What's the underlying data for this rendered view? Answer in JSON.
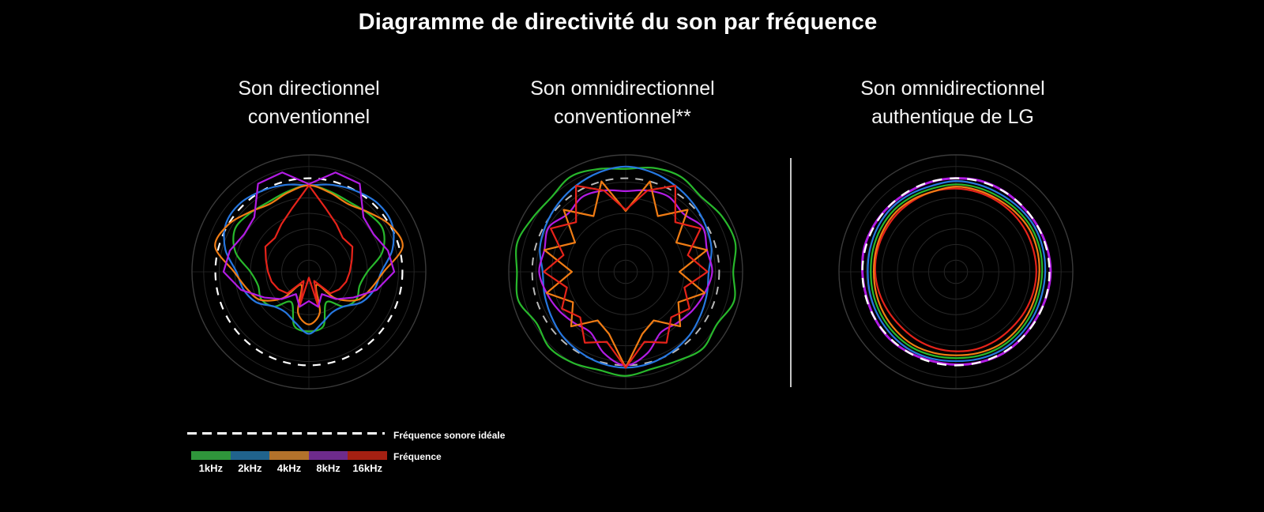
{
  "page": {
    "title": "Diagramme de directivité du son par fréquence",
    "background": "#000000"
  },
  "legend": {
    "ideal_label": "Fréquence sonore idéale",
    "freq_label": "Fréquence",
    "ideal_line_color": "#ffffff",
    "items": [
      {
        "label": "1kHz",
        "color": "#2f963b"
      },
      {
        "label": "2kHz",
        "color": "#20638d"
      },
      {
        "label": "4kHz",
        "color": "#b3722b"
      },
      {
        "label": "8kHz",
        "color": "#6e2b8c"
      },
      {
        "label": "16kHz",
        "color": "#a52012"
      }
    ]
  },
  "chart_data": [
    {
      "type": "polar-line",
      "title_lines": [
        "Son directionnel",
        "conventionnel"
      ],
      "angle_unit": "deg",
      "angle_zero": "top-clockwise",
      "angle_step_deg": 15,
      "radial_range": [
        0,
        1
      ],
      "grid": "concentric-rings",
      "ideal": {
        "label": "Fréquence sonore idéale",
        "radius": 0.8,
        "color": "#ffffff",
        "on_top": false,
        "dash": "10 9",
        "width": 2.2
      },
      "series": [
        {
          "name": "1kHz",
          "color": "#28b82c",
          "style": "smooth",
          "values": [
            0.74,
            0.71,
            0.69,
            0.71,
            0.73,
            0.65,
            0.5,
            0.45,
            0.47,
            0.42,
            0.3,
            0.48,
            0.51,
            0.48,
            0.3,
            0.42,
            0.47,
            0.45,
            0.5,
            0.65,
            0.73,
            0.71,
            0.69,
            0.71
          ]
        },
        {
          "name": "2kHz",
          "color": "#2677e0",
          "style": "smooth",
          "values": [
            0.74,
            0.77,
            0.8,
            0.83,
            0.82,
            0.74,
            0.62,
            0.58,
            0.52,
            0.42,
            0.4,
            0.45,
            0.53,
            0.45,
            0.4,
            0.42,
            0.52,
            0.58,
            0.62,
            0.74,
            0.82,
            0.83,
            0.8,
            0.77
          ]
        },
        {
          "name": "4kHz",
          "color": "#f07c14",
          "style": "smooth",
          "values": [
            0.74,
            0.7,
            0.67,
            0.72,
            0.8,
            0.83,
            0.64,
            0.55,
            0.48,
            0.32,
            0.13,
            0.36,
            0.45,
            0.36,
            0.13,
            0.32,
            0.48,
            0.55,
            0.64,
            0.83,
            0.8,
            0.72,
            0.67,
            0.7
          ]
        },
        {
          "name": "16kHz",
          "color": "#e6231a",
          "style": "jagged",
          "values": [
            0.74,
            0.56,
            0.47,
            0.41,
            0.43,
            0.38,
            0.35,
            0.33,
            0.3,
            0.26,
            0.09,
            0.29,
            0.05,
            0.29,
            0.09,
            0.26,
            0.3,
            0.33,
            0.35,
            0.38,
            0.43,
            0.41,
            0.47,
            0.56
          ]
        },
        {
          "name": "8kHz",
          "color": "#b21ce4",
          "style": "jagged",
          "values": [
            0.75,
            0.88,
            0.87,
            0.66,
            0.64,
            0.7,
            0.73,
            0.6,
            0.44,
            0.33,
            0.22,
            0.31,
            0.25,
            0.31,
            0.22,
            0.33,
            0.44,
            0.6,
            0.73,
            0.7,
            0.64,
            0.66,
            0.87,
            0.88
          ]
        }
      ]
    },
    {
      "type": "polar-line",
      "title_lines": [
        "Son omnidirectionnel",
        "conventionnel**"
      ],
      "angle_unit": "deg",
      "angle_zero": "top-clockwise",
      "angle_step_deg": 15,
      "radial_range": [
        0,
        1
      ],
      "grid": "concentric-rings",
      "ideal": {
        "label": "Fréquence sonore idéale",
        "radius": 0.8,
        "color": "#b9b9b9",
        "on_top": false,
        "dash": "10 9",
        "width": 2.0
      },
      "series": [
        {
          "name": "1kHz",
          "color": "#28b82c",
          "style": "smooth",
          "values": [
            0.88,
            0.92,
            0.94,
            0.91,
            0.95,
            0.97,
            0.92,
            0.96,
            0.9,
            0.93,
            0.88,
            0.86,
            0.89,
            0.87,
            0.9,
            0.92,
            0.88,
            0.95,
            0.93,
            0.96,
            0.92,
            0.9,
            0.94,
            0.91
          ]
        },
        {
          "name": "2kHz",
          "color": "#2677e0",
          "style": "smooth",
          "values": [
            0.9,
            0.88,
            0.85,
            0.82,
            0.79,
            0.76,
            0.71,
            0.72,
            0.74,
            0.77,
            0.79,
            0.81,
            0.82,
            0.81,
            0.79,
            0.77,
            0.74,
            0.72,
            0.71,
            0.76,
            0.79,
            0.82,
            0.85,
            0.88
          ]
        },
        {
          "name": "8kHz",
          "color": "#b21ce4",
          "style": "smooth",
          "values": [
            0.69,
            0.72,
            0.74,
            0.7,
            0.76,
            0.72,
            0.74,
            0.7,
            0.66,
            0.62,
            0.6,
            0.72,
            0.8,
            0.72,
            0.6,
            0.62,
            0.66,
            0.7,
            0.74,
            0.72,
            0.76,
            0.7,
            0.74,
            0.72
          ]
        },
        {
          "name": "4kHz",
          "color": "#f07c14",
          "style": "jagged",
          "values": [
            0.52,
            0.8,
            0.55,
            0.75,
            0.5,
            0.72,
            0.46,
            0.7,
            0.52,
            0.66,
            0.48,
            0.55,
            0.82,
            0.55,
            0.48,
            0.66,
            0.52,
            0.7,
            0.46,
            0.72,
            0.5,
            0.75,
            0.55,
            0.8
          ]
        },
        {
          "name": "16kHz",
          "color": "#e6231a",
          "style": "jagged",
          "values": [
            0.53,
            0.72,
            0.85,
            0.6,
            0.74,
            0.55,
            0.7,
            0.52,
            0.63,
            0.55,
            0.7,
            0.62,
            0.82,
            0.62,
            0.7,
            0.55,
            0.63,
            0.52,
            0.7,
            0.55,
            0.74,
            0.6,
            0.85,
            0.72
          ]
        }
      ]
    },
    {
      "type": "polar-line",
      "title_lines": [
        "Son omnidirectionnel",
        "authentique de LG"
      ],
      "angle_unit": "deg",
      "angle_zero": "top-clockwise",
      "angle_step_deg": 15,
      "radial_range": [
        0,
        1
      ],
      "grid": "concentric-rings",
      "ideal": {
        "label": "Fréquence sonore idéale",
        "radius": 0.8,
        "color": "#ffffff",
        "on_top": true,
        "dash": "12 10",
        "width": 2.4
      },
      "series": [
        {
          "name": "16kHz",
          "color": "#e6231a",
          "style": "smooth",
          "values": [
            0.712,
            0.706,
            0.7,
            0.696,
            0.692,
            0.688,
            0.688,
            0.684,
            0.68,
            0.676,
            0.68,
            0.684,
            0.68,
            0.676,
            0.67,
            0.665,
            0.67,
            0.68,
            0.69,
            0.696,
            0.7,
            0.706,
            0.71,
            0.714
          ]
        },
        {
          "name": "4kHz",
          "color": "#f07c14",
          "style": "smooth",
          "values": [
            0.728,
            0.722,
            0.716,
            0.72,
            0.726,
            0.72,
            0.714,
            0.71,
            0.714,
            0.72,
            0.726,
            0.72,
            0.714,
            0.718,
            0.724,
            0.718,
            0.712,
            0.706,
            0.702,
            0.708,
            0.716,
            0.724,
            0.72,
            0.714
          ]
        },
        {
          "name": "1kHz",
          "color": "#28b82c",
          "style": "smooth",
          "values": [
            0.748,
            0.744,
            0.74,
            0.744,
            0.748,
            0.744,
            0.738,
            0.734,
            0.738,
            0.744,
            0.748,
            0.744,
            0.738,
            0.742,
            0.748,
            0.744,
            0.738,
            0.732,
            0.728,
            0.734,
            0.742,
            0.748,
            0.744,
            0.74
          ]
        },
        {
          "name": "2kHz",
          "color": "#2677e0",
          "style": "smooth",
          "values": [
            0.776,
            0.77,
            0.765,
            0.77,
            0.776,
            0.77,
            0.764,
            0.76,
            0.765,
            0.77,
            0.776,
            0.77,
            0.764,
            0.77,
            0.776,
            0.77,
            0.764,
            0.758,
            0.754,
            0.76,
            0.77,
            0.776,
            0.77,
            0.764
          ]
        },
        {
          "name": "8kHz",
          "color": "#b21ce4",
          "style": "smooth",
          "width": 3,
          "values": [
            0.8,
            0.806,
            0.802,
            0.796,
            0.8,
            0.806,
            0.81,
            0.802,
            0.795,
            0.8,
            0.806,
            0.8,
            0.794,
            0.79,
            0.798,
            0.806,
            0.8,
            0.794,
            0.8,
            0.81,
            0.806,
            0.8,
            0.794,
            0.798
          ]
        }
      ]
    }
  ]
}
